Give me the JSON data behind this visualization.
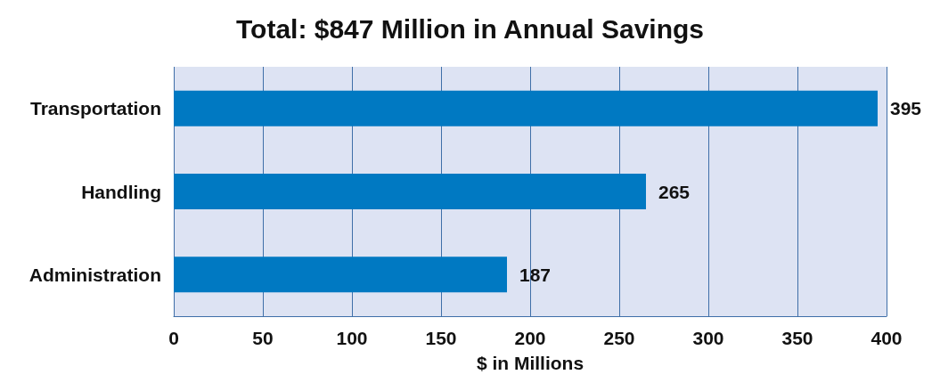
{
  "chart_data": {
    "type": "bar",
    "orientation": "horizontal",
    "title": "Total: $847 Million in Annual Savings",
    "xlabel": "$ in Millions",
    "categories": [
      "Transportation",
      "Handling",
      "Administration"
    ],
    "values": [
      395,
      265,
      187
    ],
    "color": "#0079c2",
    "xlim": [
      0,
      400
    ],
    "xticks": [
      0,
      50,
      100,
      150,
      200,
      250,
      300,
      350,
      400
    ],
    "grid": "x",
    "data_labels": true
  }
}
